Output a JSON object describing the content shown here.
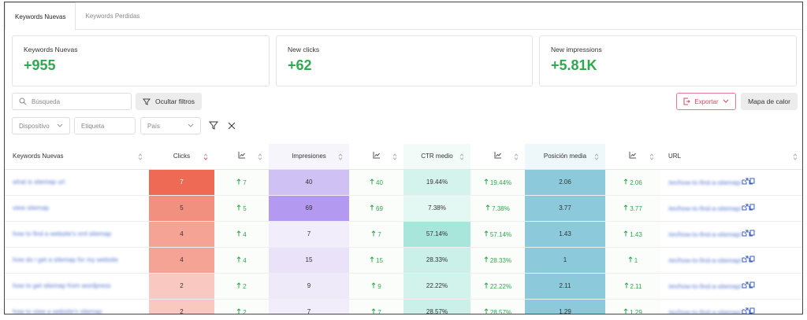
{
  "tabs": [
    "Keywords Nuevas",
    "Keywords Perdidas"
  ],
  "cards": [
    {
      "label": "Keywords Nuevas",
      "value": "+955"
    },
    {
      "label": "New clicks",
      "value": "+62"
    },
    {
      "label": "New impressions",
      "value": "+5.81K"
    }
  ],
  "toolbar": {
    "search_placeholder": "Búsqueda",
    "hide_filters": "Ocultar filtros",
    "export": "Exportar",
    "heatmap": "Mapa de calor"
  },
  "filters": [
    "Dispositivo",
    "Etiqueta",
    "País"
  ],
  "table": {
    "headers": [
      "Keywords Nuevas",
      "Clicks",
      null,
      "Impresiones",
      null,
      "CTR medio",
      null,
      "Posición media",
      null,
      "URL"
    ],
    "rows": [
      [
        "what is sitemap url",
        "7",
        "7",
        "40",
        "40",
        "19.44%",
        "19.44%",
        "2.06",
        "2.06",
        "/en/how-to-find-a-sitemap/"
      ],
      [
        "view sitemap",
        "5",
        "5",
        "69",
        "69",
        "7.38%",
        "7.38%",
        "3.77",
        "3.77",
        "/en/how-to-find-a-sitemap/"
      ],
      [
        "how to find a website's xml sitemap",
        "4",
        "4",
        "7",
        "7",
        "57.14%",
        "57.14%",
        "1.43",
        "1.43",
        "/en/how-to-find-a-sitemap/"
      ],
      [
        "how do i get a sitemap for my website",
        "4",
        "4",
        "15",
        "15",
        "28.33%",
        "28.33%",
        "1",
        "1",
        "/en/how-to-find-a-sitemap/"
      ],
      [
        "how to get sitemap from wordpress",
        "2",
        "2",
        "9",
        "9",
        "22.22%",
        "22.22%",
        "2.11",
        "2.11",
        "/en/how-to-find-a-sitemap/"
      ],
      [
        "how to view a website's sitemap",
        "2",
        "2",
        "7",
        "7",
        "28.57%",
        "28.57%",
        "1.29",
        "1.29",
        "/en/how-to-find-a-sitemap/"
      ]
    ]
  }
}
